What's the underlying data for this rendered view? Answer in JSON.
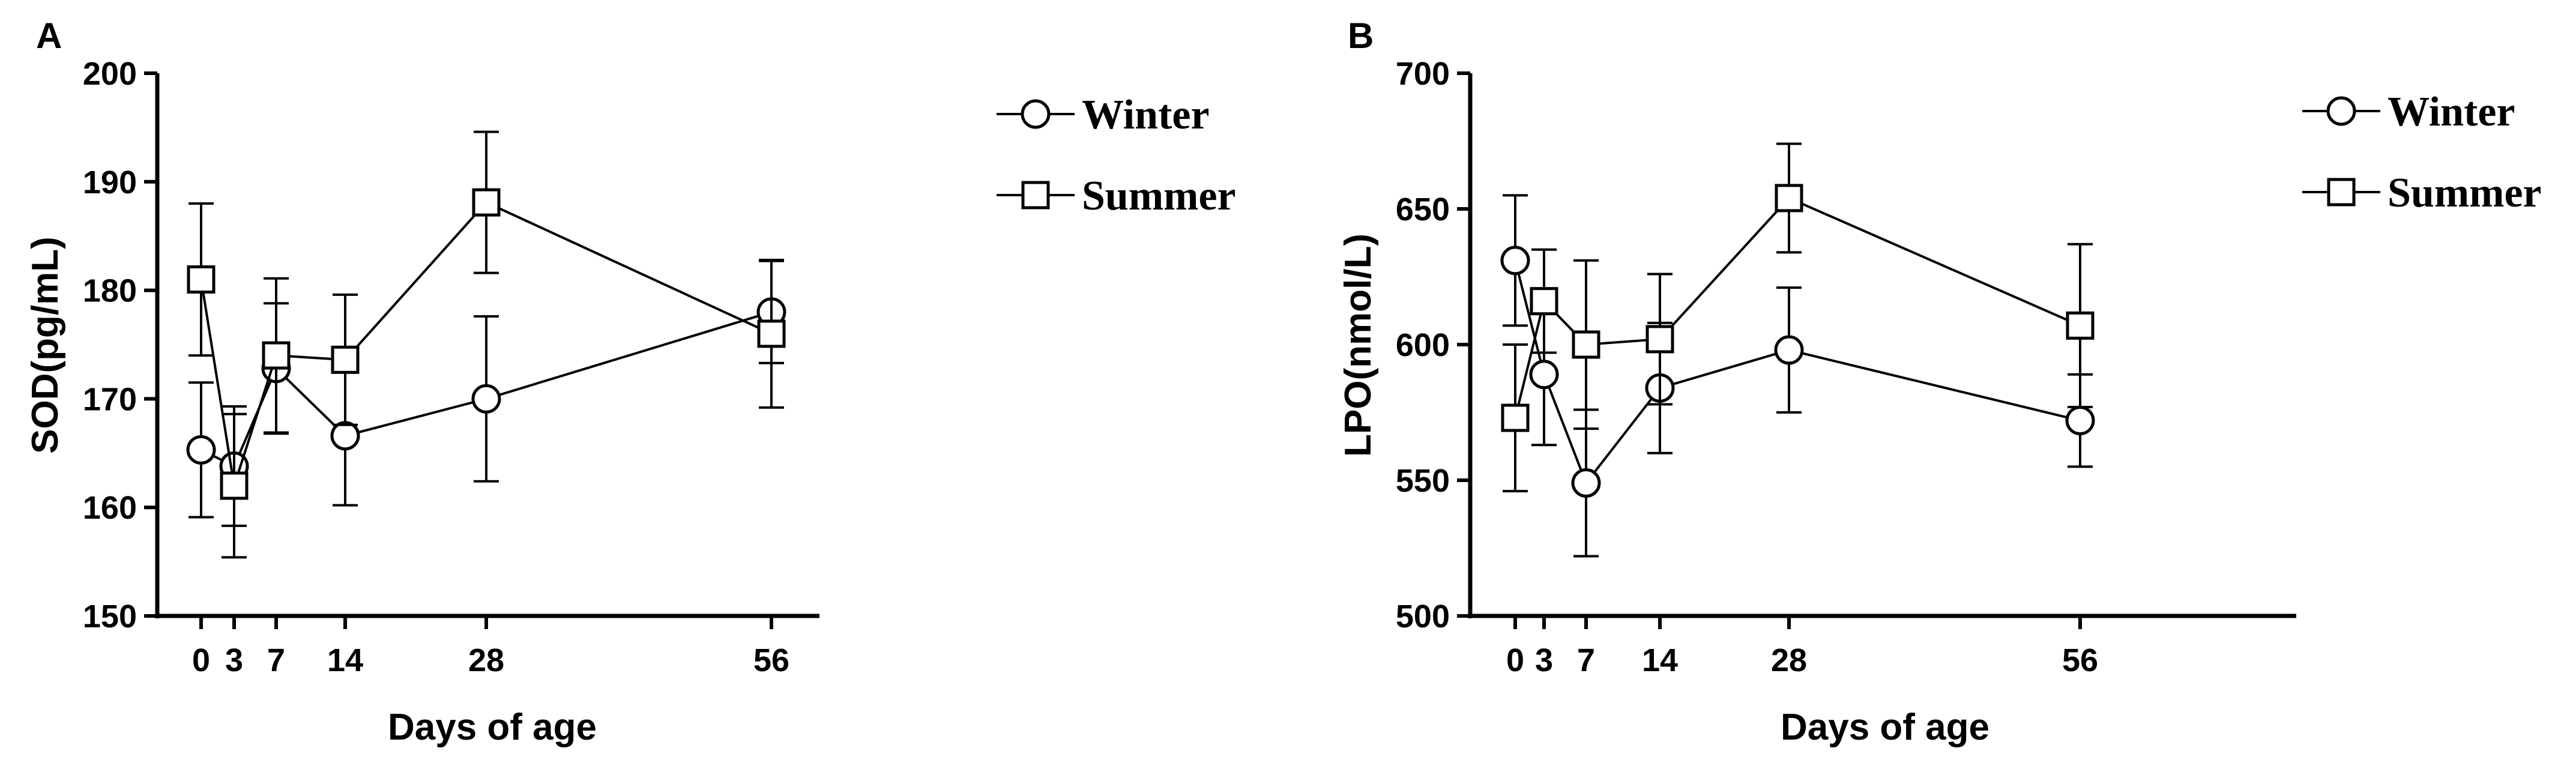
{
  "chart_data": [
    {
      "panel": "A",
      "type": "line",
      "xlabel": "Days of age",
      "ylabel": "SOD(pg/mL)",
      "x": [
        0,
        3,
        7,
        14,
        28,
        56
      ],
      "xticks": [
        "0",
        "3",
        "7",
        "14",
        "28",
        "56"
      ],
      "xlim": [
        -3,
        88
      ],
      "ylim": [
        150,
        200
      ],
      "yticks": [
        "150",
        "160",
        "170",
        "180",
        "190",
        "200"
      ],
      "grid": false,
      "legend_position": "top-right",
      "series": [
        {
          "name": "Winter",
          "marker": "circle",
          "values": [
            165.3,
            163.8,
            172.8,
            166.6,
            170.0,
            178.0
          ],
          "errors": [
            6.2,
            5.5,
            6.0,
            6.4,
            7.6,
            4.7
          ]
        },
        {
          "name": "Summer",
          "marker": "square",
          "values": [
            181.0,
            162.0,
            174.0,
            173.6,
            188.1,
            176.0
          ],
          "errors": [
            7.0,
            6.6,
            7.1,
            6.0,
            6.5,
            6.8
          ]
        }
      ]
    },
    {
      "panel": "B",
      "type": "line",
      "xlabel": "Days of age",
      "ylabel": "LPO(nmol/L)",
      "x": [
        0,
        3,
        7,
        14,
        28,
        56
      ],
      "xticks": [
        "0",
        "3",
        "7",
        "14",
        "28",
        "56"
      ],
      "xlim": [
        -3,
        88
      ],
      "ylim": [
        500,
        700
      ],
      "yticks": [
        "500",
        "550",
        "600",
        "650",
        "700"
      ],
      "grid": false,
      "legend_position": "top-right",
      "series": [
        {
          "name": "Winter",
          "marker": "circle",
          "values": [
            631,
            589,
            549,
            584,
            598,
            572
          ],
          "errors": [
            24,
            26,
            27,
            24,
            23,
            17
          ]
        },
        {
          "name": "Summer",
          "marker": "square",
          "values": [
            573,
            616,
            600,
            602,
            654,
            607
          ],
          "errors": [
            27,
            19,
            31,
            24,
            20,
            30
          ]
        }
      ]
    }
  ]
}
